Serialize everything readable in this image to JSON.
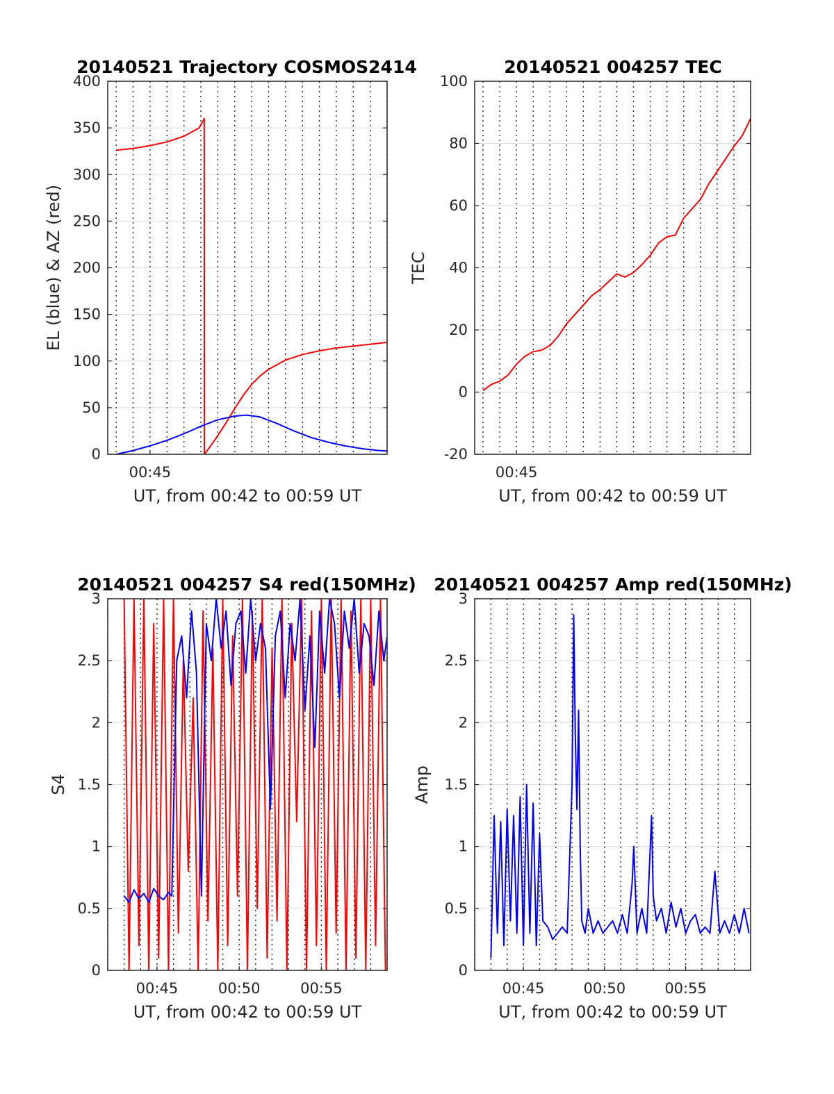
{
  "chart_data": [
    {
      "type": "line",
      "title": "20140521 Trajectory COSMOS2414",
      "xlabel": "UT, from 00:42 to 00:59 UT",
      "ylabel": "EL (blue) & AZ (red)",
      "xlim_minutes": [
        42.5,
        59.0
      ],
      "ylim": [
        0,
        400
      ],
      "yticks": [
        "0",
        "50",
        "100",
        "150",
        "200",
        "250",
        "300",
        "350",
        "400"
      ],
      "xtick_labels": [
        {
          "value": 45,
          "label": "00:45"
        }
      ],
      "grid": true,
      "series": [
        {
          "color": "#ff0000",
          "x": [
            43.0,
            44.0,
            45.0,
            46.0,
            47.0,
            47.9,
            48.2,
            48.21,
            48.5,
            49.0,
            49.5,
            50.0,
            50.5,
            51.0,
            51.5,
            52.0,
            53.0,
            54.0,
            55.0,
            56.0,
            57.0,
            58.0,
            59.0
          ],
          "values": [
            326,
            328,
            331,
            335,
            341,
            350,
            360,
            0,
            7,
            20,
            34,
            49,
            63,
            75,
            84,
            91,
            101,
            107,
            111,
            114,
            116,
            118,
            120
          ]
        },
        {
          "color": "#0000ff",
          "x": [
            43.0,
            44.0,
            45.0,
            46.0,
            47.0,
            48.0,
            49.0,
            50.0,
            50.7,
            51.5,
            52.5,
            53.5,
            54.5,
            55.5,
            56.5,
            57.5,
            58.5,
            59.0
          ],
          "values": [
            0,
            4,
            9,
            15,
            22,
            30,
            37,
            41,
            42,
            40,
            33,
            25,
            18,
            13,
            9,
            6,
            4,
            3.5
          ]
        }
      ]
    },
    {
      "type": "line",
      "title": "20140521 004257 TEC",
      "xlabel": "UT, from 00:42 to 00:59 UT",
      "ylabel": "TEC",
      "xlim_minutes": [
        42.5,
        59.0
      ],
      "ylim": [
        -20,
        100
      ],
      "yticks": [
        "-20",
        "0",
        "20",
        "40",
        "60",
        "80",
        "100"
      ],
      "xtick_labels": [
        {
          "value": 45,
          "label": "00:45"
        }
      ],
      "grid": true,
      "series": [
        {
          "color": "#ff0000",
          "x": [
            43.0,
            43.5,
            44.0,
            44.5,
            45.0,
            45.5,
            46.0,
            46.5,
            47.0,
            47.5,
            48.0,
            48.5,
            49.0,
            49.5,
            50.0,
            50.5,
            51.0,
            51.5,
            52.0,
            52.5,
            53.0,
            53.5,
            54.0,
            54.5,
            55.0,
            55.5,
            56.0,
            56.5,
            57.0,
            57.5,
            58.0,
            58.5,
            59.0
          ],
          "values": [
            0.5,
            2.5,
            3.5,
            5.5,
            9,
            11.5,
            13,
            13.5,
            15,
            18,
            22,
            25,
            28,
            31,
            33,
            35.5,
            38,
            37,
            38.5,
            41,
            44,
            48,
            50,
            50.5,
            56,
            59,
            62,
            67,
            71,
            75,
            79,
            82.5,
            88
          ]
        }
      ]
    },
    {
      "type": "line",
      "title": "20140521 004257 S4 red(150MHz)",
      "xlabel": "UT, from 00:42 to 00:59 UT",
      "ylabel": "S4",
      "xlim_minutes": [
        42.0,
        59.0
      ],
      "ylim": [
        0,
        3
      ],
      "yticks": [
        "0",
        "0.5",
        "1",
        "1.5",
        "2",
        "2.5",
        "3"
      ],
      "xtick_labels": [
        {
          "value": 45,
          "label": "00:45"
        },
        {
          "value": 50,
          "label": "00:50"
        },
        {
          "value": 55,
          "label": "00:55"
        }
      ],
      "grid": true,
      "series": [
        {
          "color": "#ff0000",
          "x": [
            43.0,
            43.3,
            43.6,
            43.9,
            44.2,
            44.5,
            44.8,
            45.1,
            45.4,
            45.7,
            46.0,
            46.3,
            46.6,
            46.9,
            47.2,
            47.5,
            47.8,
            48.1,
            48.4,
            48.7,
            49.0,
            49.3,
            49.6,
            49.9,
            50.2,
            50.5,
            50.8,
            51.1,
            51.4,
            51.7,
            52.0,
            52.3,
            52.6,
            52.9,
            53.2,
            53.5,
            53.8,
            54.1,
            54.4,
            54.7,
            55.0,
            55.3,
            55.6,
            55.9,
            56.2,
            56.5,
            56.8,
            57.1,
            57.4,
            57.7,
            58.0,
            58.3,
            58.6,
            58.9
          ],
          "values": [
            3,
            0,
            3,
            0.2,
            3,
            0,
            2.8,
            0.1,
            3,
            0,
            3,
            0.3,
            2.5,
            0.8,
            2.2,
            0,
            2.9,
            0.4,
            2.6,
            0,
            3,
            0.2,
            2.7,
            0.6,
            3,
            0,
            2.9,
            0.5,
            3,
            0.1,
            2.6,
            0.4,
            3,
            0,
            2.8,
            1.2,
            3,
            0,
            2.9,
            0.2,
            3,
            0,
            3,
            0.3,
            3,
            0,
            2.9,
            0.1,
            3,
            0,
            3,
            0.2,
            3,
            0
          ]
        },
        {
          "color": "#0000ff",
          "x": [
            43.0,
            43.3,
            43.6,
            43.9,
            44.2,
            44.5,
            44.8,
            45.1,
            45.4,
            45.7,
            45.9,
            46.2,
            46.5,
            46.8,
            47.1,
            47.4,
            47.7,
            48.0,
            48.3,
            48.6,
            48.9,
            49.2,
            49.5,
            49.8,
            50.1,
            50.4,
            50.7,
            51.0,
            51.3,
            51.6,
            51.9,
            52.2,
            52.5,
            52.8,
            53.1,
            53.4,
            53.7,
            54.0,
            54.3,
            54.6,
            54.9,
            55.2,
            55.5,
            55.8,
            56.1,
            56.4,
            56.7,
            57.0,
            57.3,
            57.6,
            57.9,
            58.2,
            58.5,
            58.8,
            59.0
          ],
          "values": [
            0.6,
            0.55,
            0.65,
            0.58,
            0.62,
            0.55,
            0.66,
            0.6,
            0.57,
            0.63,
            0.6,
            2.5,
            2.7,
            2.2,
            2.9,
            2.4,
            0.6,
            2.8,
            2.5,
            3.0,
            2.6,
            2.9,
            2.3,
            2.8,
            2.9,
            2.4,
            3.0,
            2.5,
            2.8,
            2.6,
            1.3,
            2.7,
            2.9,
            2.2,
            2.8,
            2.5,
            3.0,
            2.1,
            2.7,
            1.8,
            2.9,
            2.4,
            3.0,
            2.8,
            2.2,
            2.9,
            2.6,
            3.0,
            2.4,
            2.8,
            2.7,
            2.3,
            2.9,
            2.5,
            2.7
          ]
        }
      ]
    },
    {
      "type": "line",
      "title": "20140521 004257 Amp red(150MHz)",
      "xlabel": "UT, from 00:42 to 00:59 UT",
      "ylabel": "Amp",
      "xlim_minutes": [
        42.0,
        59.0
      ],
      "ylim": [
        0,
        3
      ],
      "yticks": [
        "0",
        "0.5",
        "1",
        "1.5",
        "2",
        "2.5",
        "3"
      ],
      "xtick_labels": [
        {
          "value": 45,
          "label": "00:45"
        },
        {
          "value": 50,
          "label": "00:50"
        },
        {
          "value": 55,
          "label": "00:55"
        }
      ],
      "grid": true,
      "series": [
        {
          "color": "#0000ff",
          "x": [
            43.0,
            43.2,
            43.4,
            43.6,
            43.8,
            44.0,
            44.2,
            44.4,
            44.6,
            44.8,
            45.0,
            45.2,
            45.4,
            45.6,
            45.8,
            46.0,
            46.2,
            46.5,
            46.8,
            47.1,
            47.4,
            47.7,
            48.0,
            48.1,
            48.2,
            48.3,
            48.4,
            48.5,
            48.6,
            48.8,
            49.0,
            49.3,
            49.6,
            49.9,
            50.2,
            50.5,
            50.8,
            51.1,
            51.4,
            51.7,
            51.8,
            52.0,
            52.3,
            52.6,
            52.9,
            53.0,
            53.2,
            53.5,
            53.8,
            54.1,
            54.4,
            54.7,
            55.0,
            55.3,
            55.6,
            55.9,
            56.2,
            56.5,
            56.8,
            57.1,
            57.4,
            57.7,
            58.0,
            58.3,
            58.6,
            58.9
          ],
          "values": [
            0.1,
            1.25,
            0.3,
            1.2,
            0.2,
            1.3,
            0.4,
            1.25,
            0.3,
            1.4,
            0.2,
            1.5,
            0.3,
            1.35,
            0.2,
            1.1,
            0.4,
            0.35,
            0.25,
            0.3,
            0.35,
            0.3,
            1.5,
            2.87,
            1.9,
            1.3,
            2.1,
            1.0,
            0.4,
            0.3,
            0.5,
            0.3,
            0.4,
            0.3,
            0.35,
            0.4,
            0.3,
            0.45,
            0.3,
            0.7,
            1.0,
            0.3,
            0.5,
            0.3,
            1.25,
            0.6,
            0.4,
            0.5,
            0.3,
            0.55,
            0.35,
            0.5,
            0.3,
            0.4,
            0.45,
            0.3,
            0.35,
            0.3,
            0.8,
            0.3,
            0.4,
            0.3,
            0.45,
            0.3,
            0.5,
            0.3
          ]
        }
      ]
    }
  ]
}
